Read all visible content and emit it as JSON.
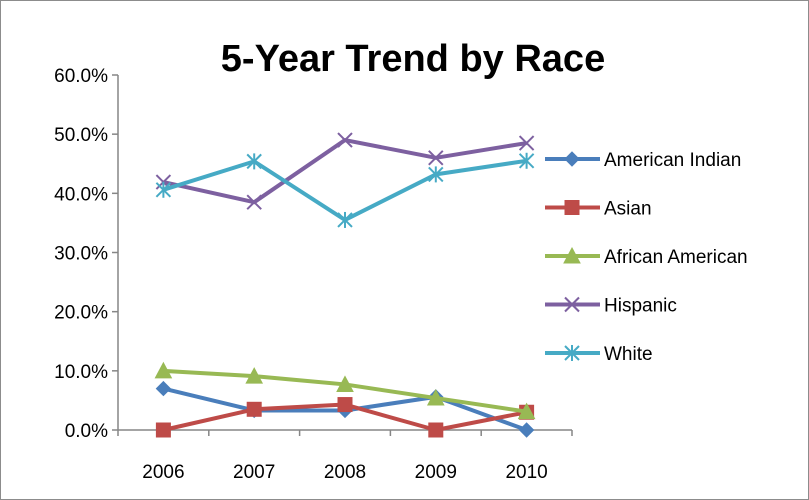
{
  "chart_data": {
    "type": "line",
    "title": "5-Year Trend by Race",
    "xlabel": "",
    "ylabel": "",
    "x": [
      "2006",
      "2007",
      "2008",
      "2009",
      "2010"
    ],
    "ylim": [
      0,
      60
    ],
    "y_ticks": [
      "0.0%",
      "10.0%",
      "20.0%",
      "30.0%",
      "40.0%",
      "50.0%",
      "60.0%"
    ],
    "y_tick_values": [
      0,
      10,
      20,
      30,
      40,
      50,
      60
    ],
    "grid": false,
    "legend_position": "right",
    "series": [
      {
        "name": "American Indian",
        "color": "#4a7ebb",
        "marker": "diamond",
        "values": [
          7.0,
          3.3,
          3.3,
          5.6,
          0.0
        ]
      },
      {
        "name": "Asian",
        "color": "#be4b48",
        "marker": "square",
        "values": [
          0.0,
          3.5,
          4.3,
          0.0,
          3.0
        ]
      },
      {
        "name": "African American",
        "color": "#98b954",
        "marker": "triangle",
        "values": [
          10.0,
          9.1,
          7.7,
          5.4,
          3.1
        ]
      },
      {
        "name": "Hispanic",
        "color": "#7d60a0",
        "marker": "x",
        "values": [
          41.9,
          38.5,
          49.0,
          46.0,
          48.5
        ]
      },
      {
        "name": "White",
        "color": "#46aac5",
        "marker": "asterisk",
        "values": [
          40.6,
          45.4,
          35.5,
          43.2,
          45.5
        ]
      }
    ]
  }
}
